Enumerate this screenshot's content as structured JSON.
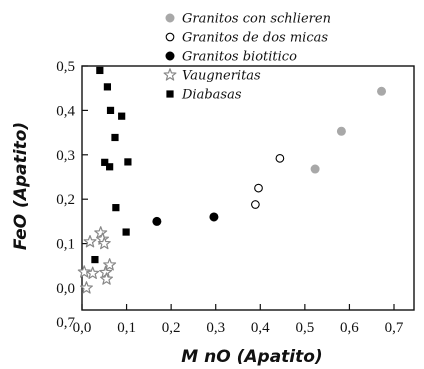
{
  "chart_data": {
    "type": "scatter",
    "xlabel": "M nO (Apatito)",
    "ylabel": "FeO (Apatito)",
    "xlim": [
      0.0,
      0.7
    ],
    "ylim": [
      -0.04,
      0.5
    ],
    "x_ticks": [
      0.0,
      0.1,
      0.2,
      0.3,
      0.4,
      0.5,
      0.6,
      0.7
    ],
    "x_tick_labels": [
      "0,0",
      "0,1",
      "0,2",
      "0,3",
      "0,4",
      "0,5",
      "0,6",
      "0,7"
    ],
    "y_ticks": [
      0.0,
      0.1,
      0.2,
      0.3,
      0.4,
      0.5
    ],
    "y_tick_labels": [
      "0,0",
      "0,1",
      "0,2",
      "0,3",
      "0,4",
      "0,5"
    ],
    "corner_label": "0,7",
    "grid": false,
    "legend_position": "top",
    "series": [
      {
        "name": "Granitos con schlieren",
        "marker": "circle-filled",
        "color": "#a8a8a8",
        "points": [
          [
            0.523,
            0.268
          ],
          [
            0.582,
            0.353
          ],
          [
            0.672,
            0.443
          ]
        ]
      },
      {
        "name": "Granitos de dos micas",
        "marker": "circle-open",
        "color": "#000000",
        "points": [
          [
            0.389,
            0.188
          ],
          [
            0.396,
            0.225
          ],
          [
            0.444,
            0.292
          ]
        ]
      },
      {
        "name": "Granitos biotitico",
        "marker": "circle-filled",
        "color": "#000000",
        "points": [
          [
            0.168,
            0.15
          ],
          [
            0.296,
            0.16
          ]
        ]
      },
      {
        "name": "Vaugneritas",
        "marker": "star",
        "color": "#888888",
        "points": [
          [
            0.005,
            0.036
          ],
          [
            0.01,
            0.0
          ],
          [
            0.018,
            0.104
          ],
          [
            0.024,
            0.033
          ],
          [
            0.042,
            0.124
          ],
          [
            0.046,
            0.11
          ],
          [
            0.05,
            0.1
          ],
          [
            0.053,
            0.035
          ],
          [
            0.055,
            0.02
          ],
          [
            0.062,
            0.052
          ]
        ]
      },
      {
        "name": "Diabasas",
        "marker": "square",
        "color": "#000000",
        "points": [
          [
            0.029,
            0.064
          ],
          [
            0.04,
            0.49
          ],
          [
            0.051,
            0.283
          ],
          [
            0.057,
            0.453
          ],
          [
            0.062,
            0.273
          ],
          [
            0.064,
            0.4
          ],
          [
            0.074,
            0.339
          ],
          [
            0.076,
            0.181
          ],
          [
            0.089,
            0.387
          ],
          [
            0.099,
            0.126
          ],
          [
            0.103,
            0.284
          ]
        ]
      }
    ]
  }
}
